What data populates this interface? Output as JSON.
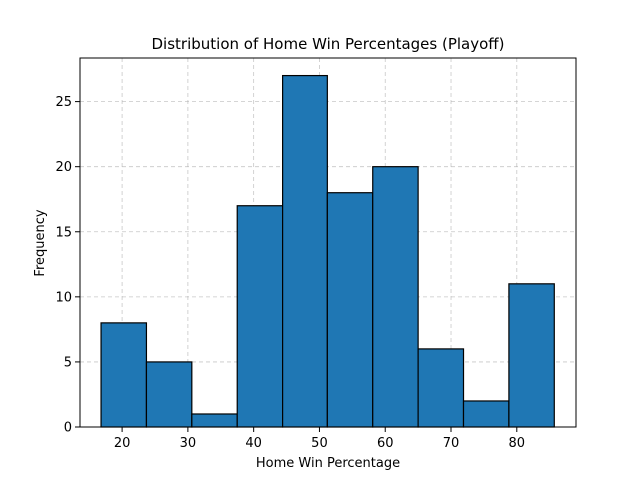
{
  "chart_data": {
    "type": "bar",
    "title": "Distribution of Home Win Percentages (Playoff)",
    "xlabel": "Home Win Percentage",
    "ylabel": "Frequency",
    "bar_color": "#1f77b4",
    "edge_color": "#000000",
    "grid": true,
    "xlim": [
      13.6,
      89.0
    ],
    "ylim": [
      0,
      28.35
    ],
    "xticks": [
      20,
      30,
      40,
      50,
      60,
      70,
      80
    ],
    "yticks": [
      0,
      5,
      10,
      15,
      20,
      25
    ],
    "bin_edges": [
      16.8,
      23.7,
      30.6,
      37.5,
      44.4,
      51.2,
      58.1,
      65.0,
      71.9,
      78.8,
      85.7
    ],
    "values": [
      8,
      5,
      1,
      17,
      27,
      18,
      20,
      6,
      2,
      11
    ]
  }
}
